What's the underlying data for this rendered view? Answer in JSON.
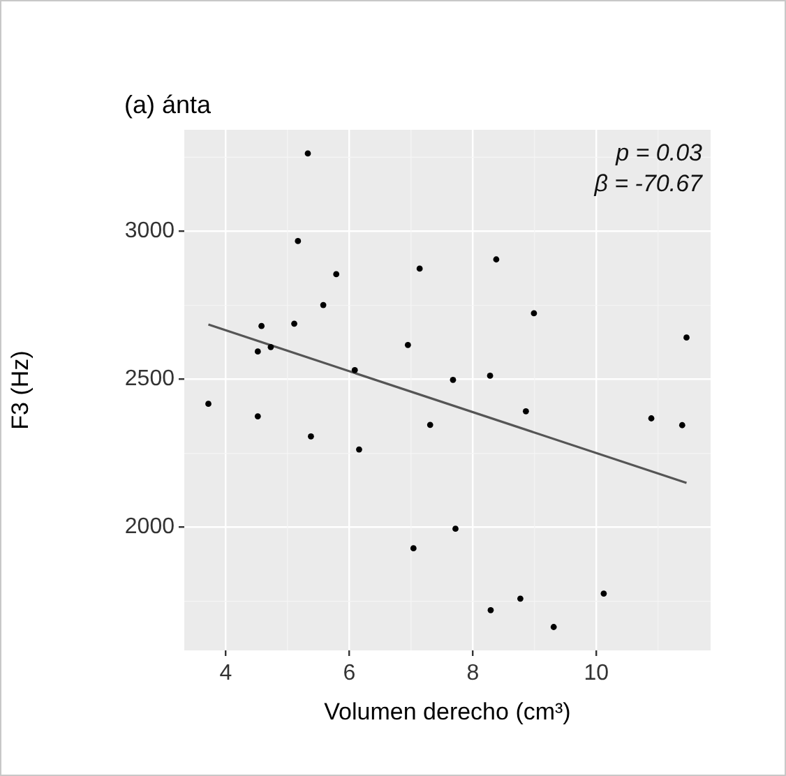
{
  "chart_data": {
    "type": "scatter",
    "title": "(a) ánta",
    "xlabel": "Volumen derecho (cm³)",
    "ylabel": "F3 (Hz)",
    "annotations": [
      "p = 0.03",
      "β = -70.67"
    ],
    "xlim": [
      3.33,
      11.85
    ],
    "xticks": [
      4,
      6,
      8,
      10
    ],
    "ylim": [
      1584,
      3343
    ],
    "yticks": [
      2000,
      2500,
      3000
    ],
    "grid": true,
    "legend": false,
    "series": [
      {
        "color": "#000000",
        "marker": "circle",
        "x": [
          5.33,
          5.17,
          5.79,
          5.58,
          4.58,
          5.11,
          4.52,
          4.73,
          6.09,
          7.14,
          6.95,
          8.38,
          8.99,
          11.46,
          7.68,
          8.28,
          3.72,
          4.52,
          5.38,
          6.16,
          7.31,
          7.04,
          8.86,
          10.89,
          11.39,
          7.72,
          8.29,
          8.77,
          9.31,
          10.12
        ],
        "values": [
          3263,
          2967,
          2855,
          2751,
          2680,
          2688,
          2594,
          2609,
          2531,
          2874,
          2616,
          2905,
          2723,
          2641,
          2498,
          2512,
          2417,
          2375,
          2307,
          2263,
          2346,
          1929,
          2392,
          2368,
          2345,
          1995,
          1720,
          1759,
          1663,
          1776
        ]
      },
      {
        "type": "line",
        "color": "#555555",
        "marker": "none",
        "line_style": "solid",
        "x": [
          3.72,
          11.46
        ],
        "values": [
          2685,
          2150
        ]
      }
    ]
  }
}
